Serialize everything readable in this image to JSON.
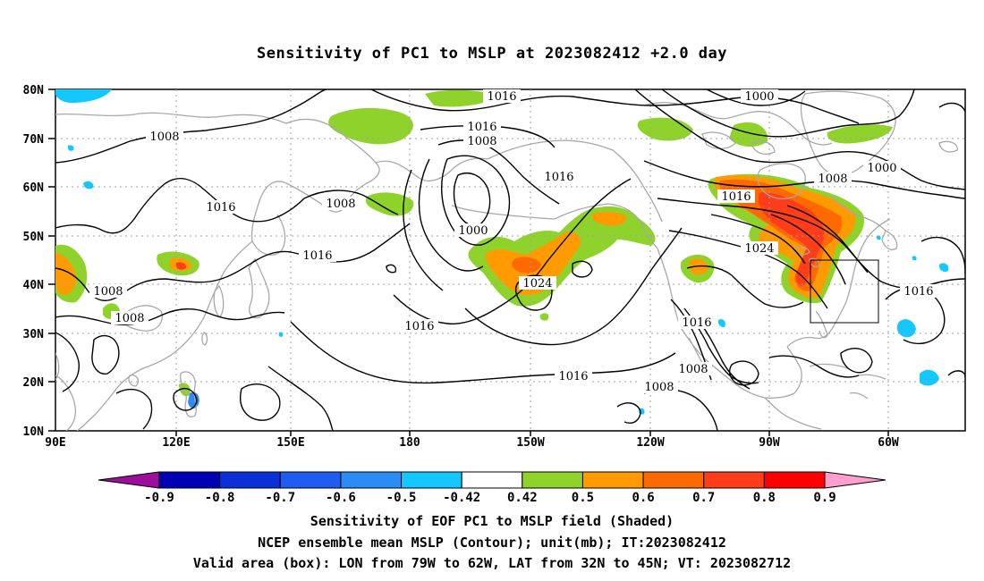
{
  "title": "Sensitivity of PC1 to MSLP at 2023082412 +2.0 day",
  "map": {
    "lat_labels": [
      "80N",
      "70N",
      "60N",
      "50N",
      "40N",
      "30N",
      "20N",
      "10N"
    ],
    "lon_labels": [
      "90E",
      "120E",
      "150E",
      "180",
      "150W",
      "120W",
      "90W",
      "60W"
    ],
    "contour_labels": [
      {
        "text": "1016"
      },
      {
        "text": "1000"
      },
      {
        "text": "1008"
      },
      {
        "text": "1016"
      },
      {
        "text": "1008"
      },
      {
        "text": "1016"
      },
      {
        "text": "1016"
      },
      {
        "text": "1008"
      },
      {
        "text": "1000"
      },
      {
        "text": "1016"
      },
      {
        "text": "1024"
      },
      {
        "text": "1016"
      },
      {
        "text": "1008"
      },
      {
        "text": "1016"
      },
      {
        "text": "1008"
      },
      {
        "text": "1016"
      },
      {
        "text": "1024"
      },
      {
        "text": "1008"
      },
      {
        "text": "1000"
      },
      {
        "text": "1016"
      },
      {
        "text": "1016"
      },
      {
        "text": "1008"
      },
      {
        "text": "1008"
      }
    ],
    "valid_box": {
      "lon_from": "79W",
      "lon_to": "62W",
      "lat_from": "32N",
      "lat_to": "45N"
    }
  },
  "colorbar": {
    "labels": [
      "-0.9",
      "-0.8",
      "-0.7",
      "-0.6",
      "-0.5",
      "-0.42",
      "0.42",
      "0.5",
      "0.6",
      "0.7",
      "0.8",
      "0.9"
    ],
    "colors": [
      "#9b0f9b",
      "#0000b4",
      "#0a2fd7",
      "#1f5cf0",
      "#2c8cf5",
      "#14c8ff",
      "#ffffff",
      "#8fd22c",
      "#ff9b00",
      "#ff6a00",
      "#ff3d1a",
      "#ff0000",
      "#ff9ecf"
    ]
  },
  "footer": {
    "line1": "Sensitivity of EOF PC1 to MSLP field (Shaded)",
    "line2": "NCEP ensemble mean MSLP (Contour); unit(mb); IT:2023082412",
    "line3": "Valid area (box): LON from 79W to 62W, LAT from 32N to 45N; VT: 2023082712"
  },
  "theme": {
    "shade_green": "#8fd22c",
    "shade_orange": "#ff9b00",
    "shade_darkorange": "#ff6a00",
    "shade_red": "#ff3d1a",
    "shade_cyan": "#14c8ff",
    "shade_blue": "#2c8cf5",
    "coast": "#a8a8a8",
    "contour": "#000000"
  }
}
